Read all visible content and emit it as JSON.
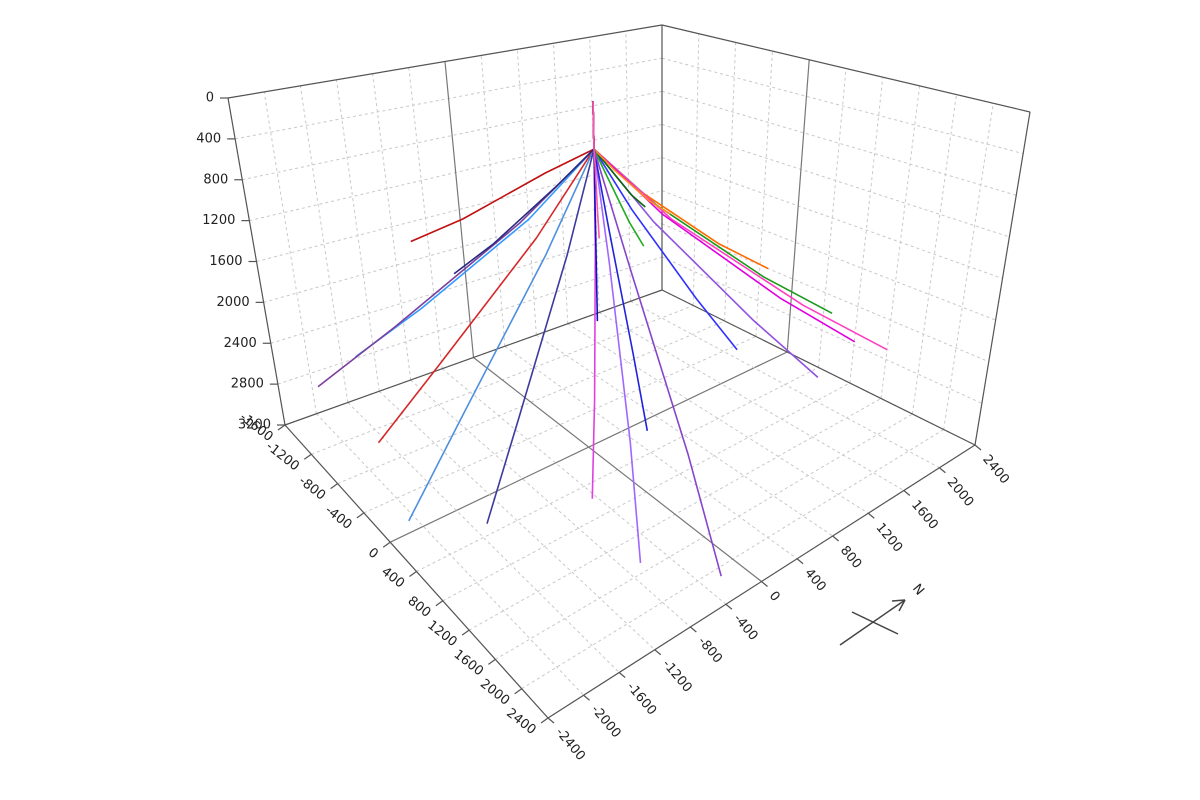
{
  "chart_data": {
    "type": "line3d",
    "compass_label": "N",
    "xlim": [
      -1600,
      2400
    ],
    "xticks": [
      -1600,
      -1200,
      -800,
      -400,
      0,
      400,
      800,
      1200,
      1600,
      2000,
      2400
    ],
    "ylim": [
      -2400,
      2400
    ],
    "yticks": [
      -2400,
      -2000,
      -1600,
      -1200,
      -800,
      -400,
      0,
      400,
      800,
      1200,
      1600,
      2000,
      2400
    ],
    "zlim": [
      0,
      3200
    ],
    "zticks": [
      0,
      400,
      800,
      1200,
      1600,
      2000,
      2400,
      2800,
      3200
    ],
    "grid": true,
    "series": [
      {
        "color": "#3399ff",
        "x": [
          -400,
          -400,
          -675,
          -1170,
          -1500
        ],
        "y": [
          480,
          480,
          -15,
          -906,
          -1500
        ],
        "z": [
          0,
          500,
          1215,
          2160,
          2700
        ]
      },
      {
        "color": "#7b3f9e",
        "x": [
          -400,
          -400,
          -600,
          -960,
          -1200
        ],
        "y": [
          480,
          480,
          -190,
          -1396,
          -2200
        ],
        "z": [
          0,
          500,
          1170,
          2080,
          2600
        ]
      },
      {
        "color": "#d62728",
        "x": [
          -400,
          -400,
          -450,
          -540,
          -600
        ],
        "y": [
          480,
          480,
          -140,
          -1256,
          -2000
        ],
        "z": [
          0,
          500,
          1260,
          2240,
          2800
        ]
      },
      {
        "color": "#4f8fe0",
        "x": [
          -400,
          -400,
          -250,
          20,
          200
        ],
        "y": [
          480,
          480,
          -215,
          -1466,
          -2300
        ],
        "z": [
          0,
          500,
          1305,
          2320,
          2900
        ]
      },
      {
        "color": "#3b3b9e",
        "x": [
          -400,
          -400,
          -150,
          300,
          600
        ],
        "y": [
          480,
          480,
          -65,
          -1046,
          -1700
        ],
        "z": [
          0,
          500,
          1305,
          2320,
          2900
        ]
      },
      {
        "color": "#a066ff",
        "x": [
          -400,
          -400,
          150,
          1140,
          1800
        ],
        "y": [
          480,
          480,
          135,
          -486,
          -900
        ],
        "z": [
          0,
          500,
          1305,
          2320,
          2900
        ]
      },
      {
        "color": "#e040e0",
        "x": [
          -400,
          -400,
          -50,
          580,
          1000
        ],
        "y": [
          480,
          480,
          160,
          -416,
          -800
        ],
        "z": [
          0,
          500,
          1260,
          2240,
          2800
        ]
      },
      {
        "color": "#2222dd",
        "x": [
          -400,
          -400,
          -100,
          440,
          800
        ],
        "y": [
          480,
          480,
          360,
          144,
          0
        ],
        "z": [
          0,
          500,
          1170,
          2080,
          2600
        ]
      },
      {
        "color": "#1010c0",
        "x": [
          -400,
          -400,
          -400,
          -400
        ],
        "y": [
          480,
          480,
          480,
          480
        ],
        "z": [
          0,
          500,
          1000,
          2300
        ]
      },
      {
        "color": "#3030ff",
        "x": [
          -400,
          -400,
          -150,
          300,
          600
        ],
        "y": [
          480,
          480,
          660,
          984,
          1200
        ],
        "z": [
          0,
          500,
          1080,
          1920,
          2400
        ]
      },
      {
        "color": "#9050e0",
        "x": [
          -400,
          -400,
          0,
          720,
          1200
        ],
        "y": [
          480,
          480,
          760,
          1264,
          1600
        ],
        "z": [
          0,
          500,
          1170,
          2080,
          2600
        ]
      },
      {
        "color": "#1a9a1a",
        "x": [
          -400,
          -400,
          -150,
          300,
          600
        ],
        "y": [
          480,
          480,
          935,
          1754,
          2300
        ],
        "z": [
          0,
          500,
          1125,
          2000,
          2500
        ]
      },
      {
        "color": "#ff6a00",
        "x": [
          -400,
          -400,
          -375,
          -330,
          -300
        ],
        "y": [
          480,
          480,
          960,
          1824,
          2400
        ],
        "z": [
          0,
          500,
          1080,
          1920,
          2400
        ]
      },
      {
        "color": "#ff40c0",
        "x": [
          -400,
          -400,
          0,
          720,
          1200
        ],
        "y": [
          480,
          480,
          960,
          1824,
          2400
        ],
        "z": [
          0,
          500,
          1215,
          2160,
          2700
        ]
      },
      {
        "color": "#e000e0",
        "x": [
          -400,
          -400,
          -50,
          580,
          1000
        ],
        "y": [
          480,
          480,
          910,
          1684,
          2200
        ],
        "z": [
          0,
          500,
          1170,
          2080,
          2600
        ]
      },
      {
        "color": "#0a6a0a",
        "x": [
          -400,
          -400,
          -650,
          -1100,
          -1400
        ],
        "y": [
          480,
          480,
          860,
          1544,
          2000
        ],
        "z": [
          0,
          500,
          900,
          1600,
          2000
        ]
      },
      {
        "color": "#ff8c1a",
        "x": [
          -400,
          -400,
          -625,
          -1030,
          -1300
        ],
        "y": [
          480,
          480,
          910,
          1684,
          2200
        ],
        "z": [
          0,
          500,
          945,
          1680,
          2100
        ]
      },
      {
        "color": "#22aa22",
        "x": [
          -400,
          -400,
          -500,
          -680,
          -800
        ],
        "y": [
          480,
          480,
          710,
          1124,
          1400
        ],
        "z": [
          0,
          500,
          900,
          1600,
          2000
        ]
      },
      {
        "color": "#c01010",
        "x": [
          -400,
          -400,
          -700,
          -1240,
          -1600
        ],
        "y": [
          480,
          480,
          210,
          -276,
          -600
        ],
        "z": [
          0,
          500,
          810,
          1440,
          1800
        ]
      },
      {
        "color": "#2a2a80",
        "x": [
          -400,
          -400,
          -650,
          -1100,
          -1400
        ],
        "y": [
          480,
          480,
          285,
          -66,
          -300
        ],
        "z": [
          0,
          500,
          945,
          1680,
          2100
        ]
      },
      {
        "color": "#8844cc",
        "x": [
          -400,
          -400,
          250,
          1420,
          2200
        ],
        "y": [
          480,
          480,
          285,
          -66,
          -300
        ],
        "z": [
          0,
          500,
          1395,
          2480,
          3100
        ]
      },
      {
        "color": "#ff55aa",
        "x": [
          -400,
          -400,
          -450,
          -540,
          -600
        ],
        "y": [
          480,
          480,
          535,
          634,
          700
        ],
        "z": [
          0,
          500,
          720,
          1280,
          1600
        ]
      }
    ]
  }
}
